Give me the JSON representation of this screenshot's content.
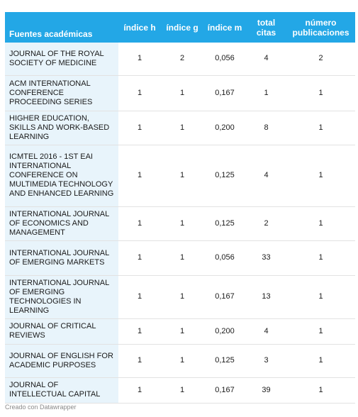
{
  "table": {
    "headers": [
      "Fuentes académicas",
      "índice h",
      "índice g",
      "índice m",
      "total citas",
      "número publicaciones"
    ],
    "rows": [
      [
        "JOURNAL OF THE ROYAL SOCIETY OF MEDICINE",
        "1",
        "2",
        "0,056",
        "4",
        "2"
      ],
      [
        "ACM INTERNATIONAL CONFERENCE PROCEEDING SERIES",
        "1",
        "1",
        "0,167",
        "1",
        "1"
      ],
      [
        "HIGHER EDUCATION, SKILLS AND WORK-BASED LEARNING",
        "1",
        "1",
        "0,200",
        "8",
        "1"
      ],
      [
        "ICMTEL 2016 - 1ST EAI INTERNATIONAL CONFERENCE ON MULTIMEDIA TECHNOLOGY AND ENHANCED LEARNING",
        "1",
        "1",
        "0,125",
        "4",
        "1"
      ],
      [
        "INTERNATIONAL JOURNAL OF ECONOMICS AND MANAGEMENT",
        "1",
        "1",
        "0,125",
        "2",
        "1"
      ],
      [
        "INTERNATIONAL JOURNAL OF EMERGING MARKETS",
        "1",
        "1",
        "0,056",
        "33",
        "1"
      ],
      [
        "INTERNATIONAL JOURNAL OF EMERGING TECHNOLOGIES IN LEARNING",
        "1",
        "1",
        "0,167",
        "13",
        "1"
      ],
      [
        "JOURNAL OF CRITICAL REVIEWS",
        "1",
        "1",
        "0,200",
        "4",
        "1"
      ],
      [
        "JOURNAL OF ENGLISH FOR ACADEMIC PURPOSES",
        "1",
        "1",
        "0,125",
        "3",
        "1"
      ],
      [
        "JOURNAL OF INTELLECTUAL CAPITAL",
        "1",
        "1",
        "0,167",
        "39",
        "1"
      ]
    ]
  },
  "footer": "Creado con Datawrapper",
  "colors": {
    "header_bg": "#23a7e6",
    "first_col_bg": "#e8f4fb"
  }
}
